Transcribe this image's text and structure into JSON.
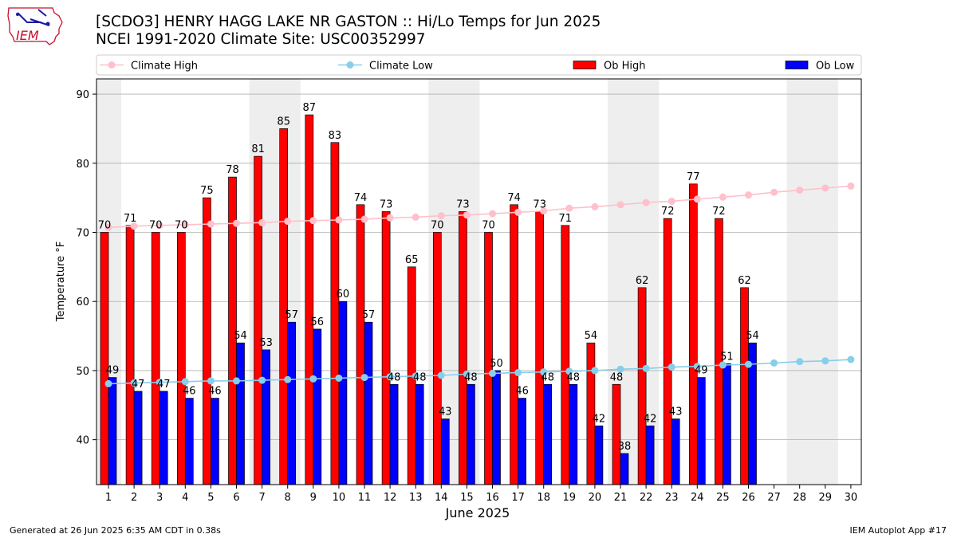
{
  "header": {
    "title": "[SCDO3] HENRY HAGG LAKE NR GASTON :: Hi/Lo Temps for Jun 2025",
    "subtitle": "NCEI 1991-2020 Climate Site: USC00352997",
    "logo_text": "IEM"
  },
  "footer": {
    "generated": "Generated at 26 Jun 2025 6:35 AM CDT in 0.38s",
    "app": "IEM Autoplot App #17"
  },
  "colors": {
    "ob_high": "#ff0000",
    "ob_low": "#0000ff",
    "climate_high": "#ffc0cb",
    "climate_low": "#87ceeb",
    "weekend_band": "#eeeeee",
    "grid": "#b0b0b0"
  },
  "chart_data": {
    "type": "bar",
    "xlabel": "June 2025",
    "ylabel": "Temperature °F",
    "ylim": [
      33.5,
      92.2
    ],
    "yticks": [
      40,
      50,
      60,
      70,
      80,
      90
    ],
    "grid": "horizontal",
    "legend_placement": "top",
    "days": [
      1,
      2,
      3,
      4,
      5,
      6,
      7,
      8,
      9,
      10,
      11,
      12,
      13,
      14,
      15,
      16,
      17,
      18,
      19,
      20,
      21,
      22,
      23,
      24,
      25,
      26,
      27,
      28,
      29,
      30
    ],
    "weekend_days": [
      1,
      7,
      8,
      14,
      15,
      21,
      22,
      28,
      29
    ],
    "series": [
      {
        "name": "Climate High",
        "kind": "line",
        "values": [
          70.7,
          70.9,
          71.0,
          71.1,
          71.2,
          71.3,
          71.4,
          71.6,
          71.7,
          71.8,
          71.9,
          72.1,
          72.2,
          72.4,
          72.5,
          72.7,
          72.9,
          73.1,
          73.5,
          73.7,
          74.0,
          74.3,
          74.5,
          74.8,
          75.1,
          75.4,
          75.8,
          76.1,
          76.4,
          76.7
        ]
      },
      {
        "name": "Climate Low",
        "kind": "line",
        "values": [
          48.1,
          48.2,
          48.3,
          48.4,
          48.5,
          48.5,
          48.6,
          48.7,
          48.8,
          48.9,
          49.0,
          49.1,
          49.2,
          49.3,
          49.5,
          49.6,
          49.7,
          49.8,
          49.9,
          50.0,
          50.2,
          50.3,
          50.5,
          50.6,
          50.8,
          50.9,
          51.1,
          51.3,
          51.4,
          51.6
        ]
      },
      {
        "name": "Ob High",
        "kind": "bar",
        "values": [
          70,
          71,
          70,
          70,
          75,
          78,
          81,
          85,
          87,
          83,
          74,
          73,
          65,
          70,
          73,
          70,
          74,
          73,
          71,
          54,
          48,
          62,
          72,
          77,
          72,
          62,
          null,
          null,
          null,
          null
        ]
      },
      {
        "name": "Ob Low",
        "kind": "bar",
        "values": [
          49,
          47,
          47,
          46,
          46,
          54,
          53,
          57,
          56,
          60,
          57,
          48,
          48,
          43,
          48,
          50,
          46,
          48,
          48,
          42,
          38,
          42,
          43,
          49,
          51,
          54,
          null,
          null,
          null,
          null
        ]
      }
    ]
  }
}
